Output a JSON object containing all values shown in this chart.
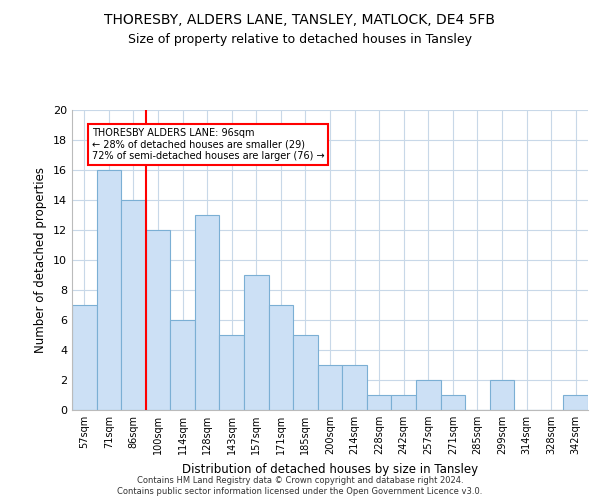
{
  "title1": "THORESBY, ALDERS LANE, TANSLEY, MATLOCK, DE4 5FB",
  "title2": "Size of property relative to detached houses in Tansley",
  "xlabel": "Distribution of detached houses by size in Tansley",
  "ylabel": "Number of detached properties",
  "categories": [
    "57sqm",
    "71sqm",
    "86sqm",
    "100sqm",
    "114sqm",
    "128sqm",
    "143sqm",
    "157sqm",
    "171sqm",
    "185sqm",
    "200sqm",
    "214sqm",
    "228sqm",
    "242sqm",
    "257sqm",
    "271sqm",
    "285sqm",
    "299sqm",
    "314sqm",
    "328sqm",
    "342sqm"
  ],
  "values": [
    7,
    16,
    14,
    12,
    6,
    13,
    5,
    9,
    7,
    5,
    3,
    3,
    1,
    1,
    2,
    1,
    0,
    2,
    0,
    0,
    1
  ],
  "bar_color": "#cce0f5",
  "bar_edge_color": "#7bafd4",
  "vline_x": 2.5,
  "vline_color": "red",
  "annotation_line1": "THORESBY ALDERS LANE: 96sqm",
  "annotation_line2": "← 28% of detached houses are smaller (29)",
  "annotation_line3": "72% of semi-detached houses are larger (76) →",
  "ylim": [
    0,
    20
  ],
  "yticks": [
    0,
    2,
    4,
    6,
    8,
    10,
    12,
    14,
    16,
    18,
    20
  ],
  "footer1": "Contains HM Land Registry data © Crown copyright and database right 2024.",
  "footer2": "Contains public sector information licensed under the Open Government Licence v3.0.",
  "bg_color": "#ffffff",
  "grid_color": "#c8d8e8"
}
